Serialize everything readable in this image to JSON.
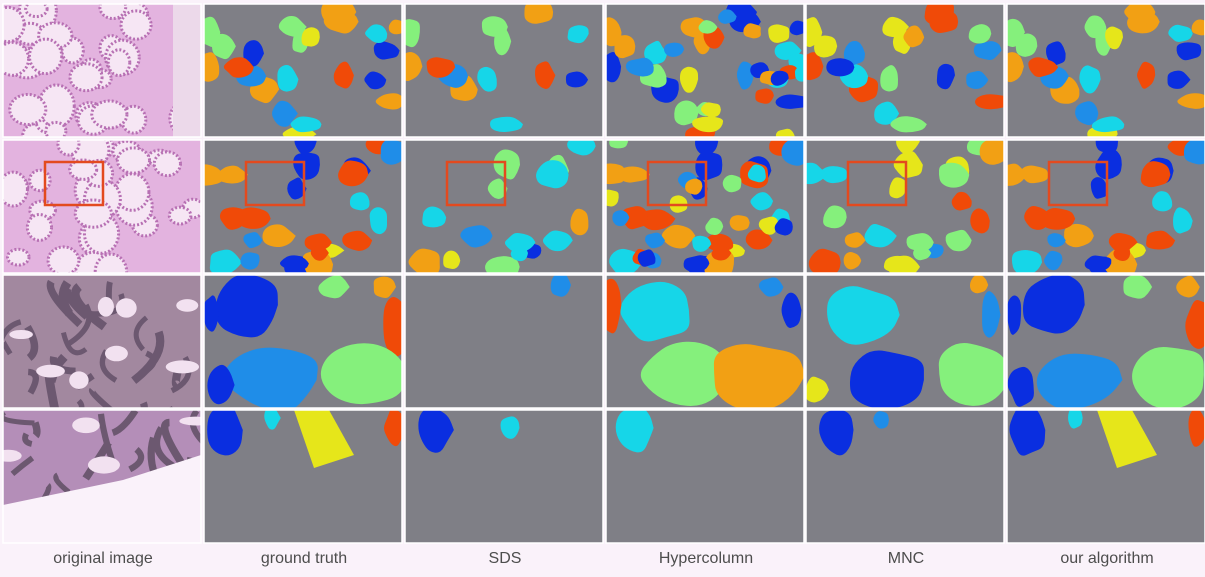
{
  "columns": [
    {
      "id": "original",
      "label": "original image"
    },
    {
      "id": "gt",
      "label": "ground truth"
    },
    {
      "id": "sds",
      "label": "SDS"
    },
    {
      "id": "hyper",
      "label": "Hypercolumn"
    },
    {
      "id": "mnc",
      "label": "MNC"
    },
    {
      "id": "ours",
      "label": "our algorithm"
    }
  ],
  "colors": {
    "background_gray": "#7f7f86",
    "tissue_pink": "#e3b3df",
    "highlight_box": "#e34a1f",
    "grid_line": "#ffffff"
  },
  "instance_palette": [
    "#0a2ee0",
    "#1f8de8",
    "#16d6e8",
    "#85f07c",
    "#e6e61a",
    "#f2a014",
    "#f04a08"
  ]
}
